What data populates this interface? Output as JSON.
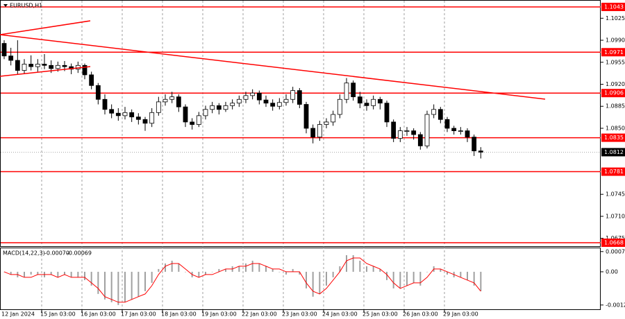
{
  "chart_data": [
    {
      "type": "candlestick",
      "title": "EURUSD,H1",
      "categories": [
        "12 Jan 2024",
        null,
        null,
        null,
        null,
        null,
        "15 Jan 03:00",
        null,
        null,
        null,
        null,
        null,
        "16 Jan 03:00",
        null,
        null,
        null,
        null,
        null,
        "17 Jan 03:00",
        null,
        null,
        null,
        null,
        null,
        "18 Jan 03:00",
        null,
        null,
        null,
        null,
        null,
        "19 Jan 03:00",
        null,
        null,
        null,
        null,
        null,
        "22 Jan 03:00",
        null,
        null,
        null,
        null,
        null,
        "23 Jan 03:00",
        null,
        null,
        null,
        null,
        null,
        "24 Jan 03:00",
        null,
        null,
        null,
        null,
        null,
        "25 Jan 03:00",
        null,
        null,
        null,
        null,
        null,
        "26 Jan 03:00",
        null,
        null,
        null,
        null,
        null,
        "29 Jan 03:00",
        null,
        null,
        null,
        null,
        null
      ],
      "ohlc": [
        [
          1.0985,
          1.099,
          1.096,
          1.0965
        ],
        [
          1.0965,
          1.0978,
          1.095,
          1.0958
        ],
        [
          1.0958,
          1.099,
          1.0936,
          1.0942
        ],
        [
          1.0942,
          1.096,
          1.0936,
          1.0952
        ],
        [
          1.0952,
          1.0966,
          1.0942,
          1.0948
        ],
        [
          1.0948,
          1.096,
          1.094,
          1.0952
        ],
        [
          1.0952,
          1.0968,
          1.0944,
          1.095
        ],
        [
          1.095,
          1.0958,
          1.0938,
          1.0945
        ],
        [
          1.0945,
          1.0956,
          1.094,
          1.095
        ],
        [
          1.095,
          1.0957,
          1.0941,
          1.0948
        ],
        [
          1.0948,
          1.0953,
          1.0936,
          1.0944
        ],
        [
          1.0944,
          1.0956,
          1.0938,
          1.095
        ],
        [
          1.095,
          1.0953,
          1.0928,
          1.0935
        ],
        [
          1.0935,
          1.094,
          1.0912,
          1.0918
        ],
        [
          1.0918,
          1.0922,
          1.0888,
          1.0896
        ],
        [
          1.0896,
          1.0904,
          1.0872,
          1.088
        ],
        [
          1.088,
          1.0888,
          1.0866,
          1.0874
        ],
        [
          1.0874,
          1.0882,
          1.0862,
          1.087
        ],
        [
          1.087,
          1.0884,
          1.0864,
          1.0875
        ],
        [
          1.0875,
          1.088,
          1.086,
          1.0868
        ],
        [
          1.0868,
          1.0874,
          1.0856,
          1.0864
        ],
        [
          1.0864,
          1.0868,
          1.0846,
          1.0858
        ],
        [
          1.0858,
          1.0882,
          1.0852,
          1.0875
        ],
        [
          1.0875,
          1.09,
          1.087,
          1.0892
        ],
        [
          1.0892,
          1.0904,
          1.0886,
          1.0896
        ],
        [
          1.0896,
          1.0908,
          1.089,
          1.09
        ],
        [
          1.09,
          1.0904,
          1.0876,
          1.0884
        ],
        [
          1.0884,
          1.0888,
          1.0852,
          1.086
        ],
        [
          1.086,
          1.0866,
          1.0848,
          1.0856
        ],
        [
          1.0856,
          1.0876,
          1.0852,
          1.087
        ],
        [
          1.087,
          1.0886,
          1.0864,
          1.088
        ],
        [
          1.088,
          1.0892,
          1.0874,
          1.0886
        ],
        [
          1.0886,
          1.089,
          1.0872,
          1.088
        ],
        [
          1.088,
          1.0892,
          1.0876,
          1.0886
        ],
        [
          1.0886,
          1.0896,
          1.088,
          1.089
        ],
        [
          1.089,
          1.0902,
          1.0884,
          1.0896
        ],
        [
          1.0896,
          1.0908,
          1.089,
          1.0902
        ],
        [
          1.0902,
          1.0912,
          1.0896,
          1.0906
        ],
        [
          1.0906,
          1.091,
          1.0888,
          1.0895
        ],
        [
          1.0895,
          1.0902,
          1.0884,
          1.089
        ],
        [
          1.089,
          1.0896,
          1.0878,
          1.0885
        ],
        [
          1.0885,
          1.0898,
          1.088,
          1.0891
        ],
        [
          1.0891,
          1.0904,
          1.0886,
          1.0896
        ],
        [
          1.0896,
          1.0916,
          1.089,
          1.091
        ],
        [
          1.091,
          1.0914,
          1.0882,
          1.0888
        ],
        [
          1.0888,
          1.0892,
          1.0842,
          1.085
        ],
        [
          1.085,
          1.0856,
          1.0826,
          1.0836
        ],
        [
          1.0836,
          1.0862,
          1.083,
          1.0856
        ],
        [
          1.0856,
          1.0866,
          1.085,
          1.086
        ],
        [
          1.086,
          1.0878,
          1.0854,
          1.0872
        ],
        [
          1.0872,
          1.0904,
          1.0866,
          1.0896
        ],
        [
          1.0896,
          1.093,
          1.089,
          1.0922
        ],
        [
          1.0922,
          1.0926,
          1.0894,
          1.09
        ],
        [
          1.09,
          1.0908,
          1.0882,
          1.089
        ],
        [
          1.089,
          1.0896,
          1.0878,
          1.0886
        ],
        [
          1.0886,
          1.0902,
          1.088,
          1.0896
        ],
        [
          1.0896,
          1.09,
          1.088,
          1.089
        ],
        [
          1.089,
          1.0894,
          1.0852,
          1.086
        ],
        [
          1.086,
          1.0864,
          1.0828,
          1.0834
        ],
        [
          1.0834,
          1.0852,
          1.0828,
          1.0846
        ],
        [
          1.0846,
          1.0852,
          1.0838,
          1.0846
        ],
        [
          1.0846,
          1.085,
          1.0832,
          1.084
        ],
        [
          1.084,
          1.0844,
          1.0816,
          1.0822
        ],
        [
          1.0822,
          1.0878,
          1.0818,
          1.0872
        ],
        [
          1.0872,
          1.0888,
          1.0866,
          1.088
        ],
        [
          1.088,
          1.0884,
          1.0858,
          1.0864
        ],
        [
          1.0864,
          1.0868,
          1.0844,
          1.085
        ],
        [
          1.085,
          1.0854,
          1.084,
          1.0846
        ],
        [
          1.0846,
          1.0852,
          1.084,
          1.0846
        ],
        [
          1.0846,
          1.085,
          1.0828,
          1.0836
        ],
        [
          1.0836,
          1.084,
          1.0806,
          1.0814
        ],
        [
          1.0814,
          1.082,
          1.0802,
          1.0812
        ]
      ],
      "ylim": [
        1.06625,
        1.1054
      ],
      "yticks": [
        1.1025,
        {
          "value": 1.099,
          "label": "1.0990"
        },
        1.0955,
        {
          "value": 1.092,
          "label": "1.0920"
        },
        1.0885,
        {
          "value": 1.085,
          "label": "1.0850"
        },
        1.0745,
        {
          "value": 1.071,
          "label": "1.0710"
        },
        1.0675
      ],
      "levels": [
        1.1043,
        1.0971,
        1.0906,
        1.0835,
        1.0781,
        1.0668
      ],
      "level_color": "#ff0000",
      "current_price": 1.0812,
      "color": "#000000"
    },
    {
      "type": "macd",
      "title": "MACD(14,22,3)",
      "readouts": [
        {
          "value": -0.0007,
          "label": "-0.00070"
        },
        -0.00069
      ],
      "histogram": [
        0,
        -0.0001,
        -0.0002,
        -0.0002,
        -0.0001,
        -0.0001,
        -0.0002,
        -0.0001,
        -0.0002,
        -0.0001,
        -0.0002,
        -0.0002,
        -0.0003,
        -0.0005,
        -0.0008,
        -0.001,
        -0.0011,
        -0.0012,
        -0.0011,
        -0.001,
        -0.0009,
        -0.0007,
        -0.0004,
        0.0001,
        0.0003,
        0.0004,
        0.0003,
        0,
        -0.0002,
        -0.0002,
        -0.0001,
        0,
        0.0001,
        0.0001,
        0.0002,
        0.0002,
        0.0003,
        0.0004,
        0.0003,
        0.0002,
        0.0001,
        0,
        -0.0001,
        0.0001,
        -0.0001,
        -0.0006,
        -0.0009,
        -0.0008,
        -0.0005,
        -0.0002,
        0.0002,
        0.0006,
        0.0006,
        0.0004,
        0.0002,
        0.0002,
        0.0001,
        -0.0003,
        -0.0006,
        -0.0006,
        -0.0005,
        -0.0004,
        -0.0005,
        0,
        0.0002,
        0.0001,
        -0.0001,
        -0.0002,
        -0.0002,
        -0.0003,
        -0.0005,
        -0.0007
      ],
      "signal": [
        0,
        -0.0001,
        -0.0001,
        -0.0002,
        -0.0002,
        -0.0001,
        -0.0001,
        -0.0001,
        -0.0002,
        -0.0001,
        -0.0002,
        -0.0002,
        -0.0002,
        -0.0004,
        -0.0006,
        -0.0009,
        -0.001,
        -0.0011,
        -0.0011,
        -0.001,
        -0.0009,
        -0.0008,
        -0.0005,
        -0.0001,
        0.0002,
        0.0003,
        0.0003,
        0.0001,
        -0.0001,
        -0.0002,
        -0.0001,
        -0.0001,
        0,
        0.0001,
        0.0001,
        0.0002,
        0.0002,
        0.0003,
        0.0003,
        0.0002,
        0.0001,
        0.0001,
        0,
        0,
        0,
        -0.0004,
        -0.0007,
        -0.0008,
        -0.0006,
        -0.0003,
        0,
        0.0004,
        0.0005,
        0.0005,
        0.0003,
        0.0002,
        0.0001,
        -0.0001,
        -0.0004,
        -0.0006,
        -0.0005,
        -0.0004,
        -0.0004,
        -0.0002,
        0.0001,
        0.0001,
        0,
        -0.0001,
        -0.0002,
        -0.0003,
        -0.0004,
        -0.0007
      ],
      "histogram_color": "#a0a0a0",
      "signal_color": "#ff0000",
      "ylim": [
        -0.00138,
        0.00085
      ],
      "yticks": [
        0.00073,
        {
          "value": 0,
          "label": "0.00"
        },
        -0.0012
      ]
    }
  ]
}
